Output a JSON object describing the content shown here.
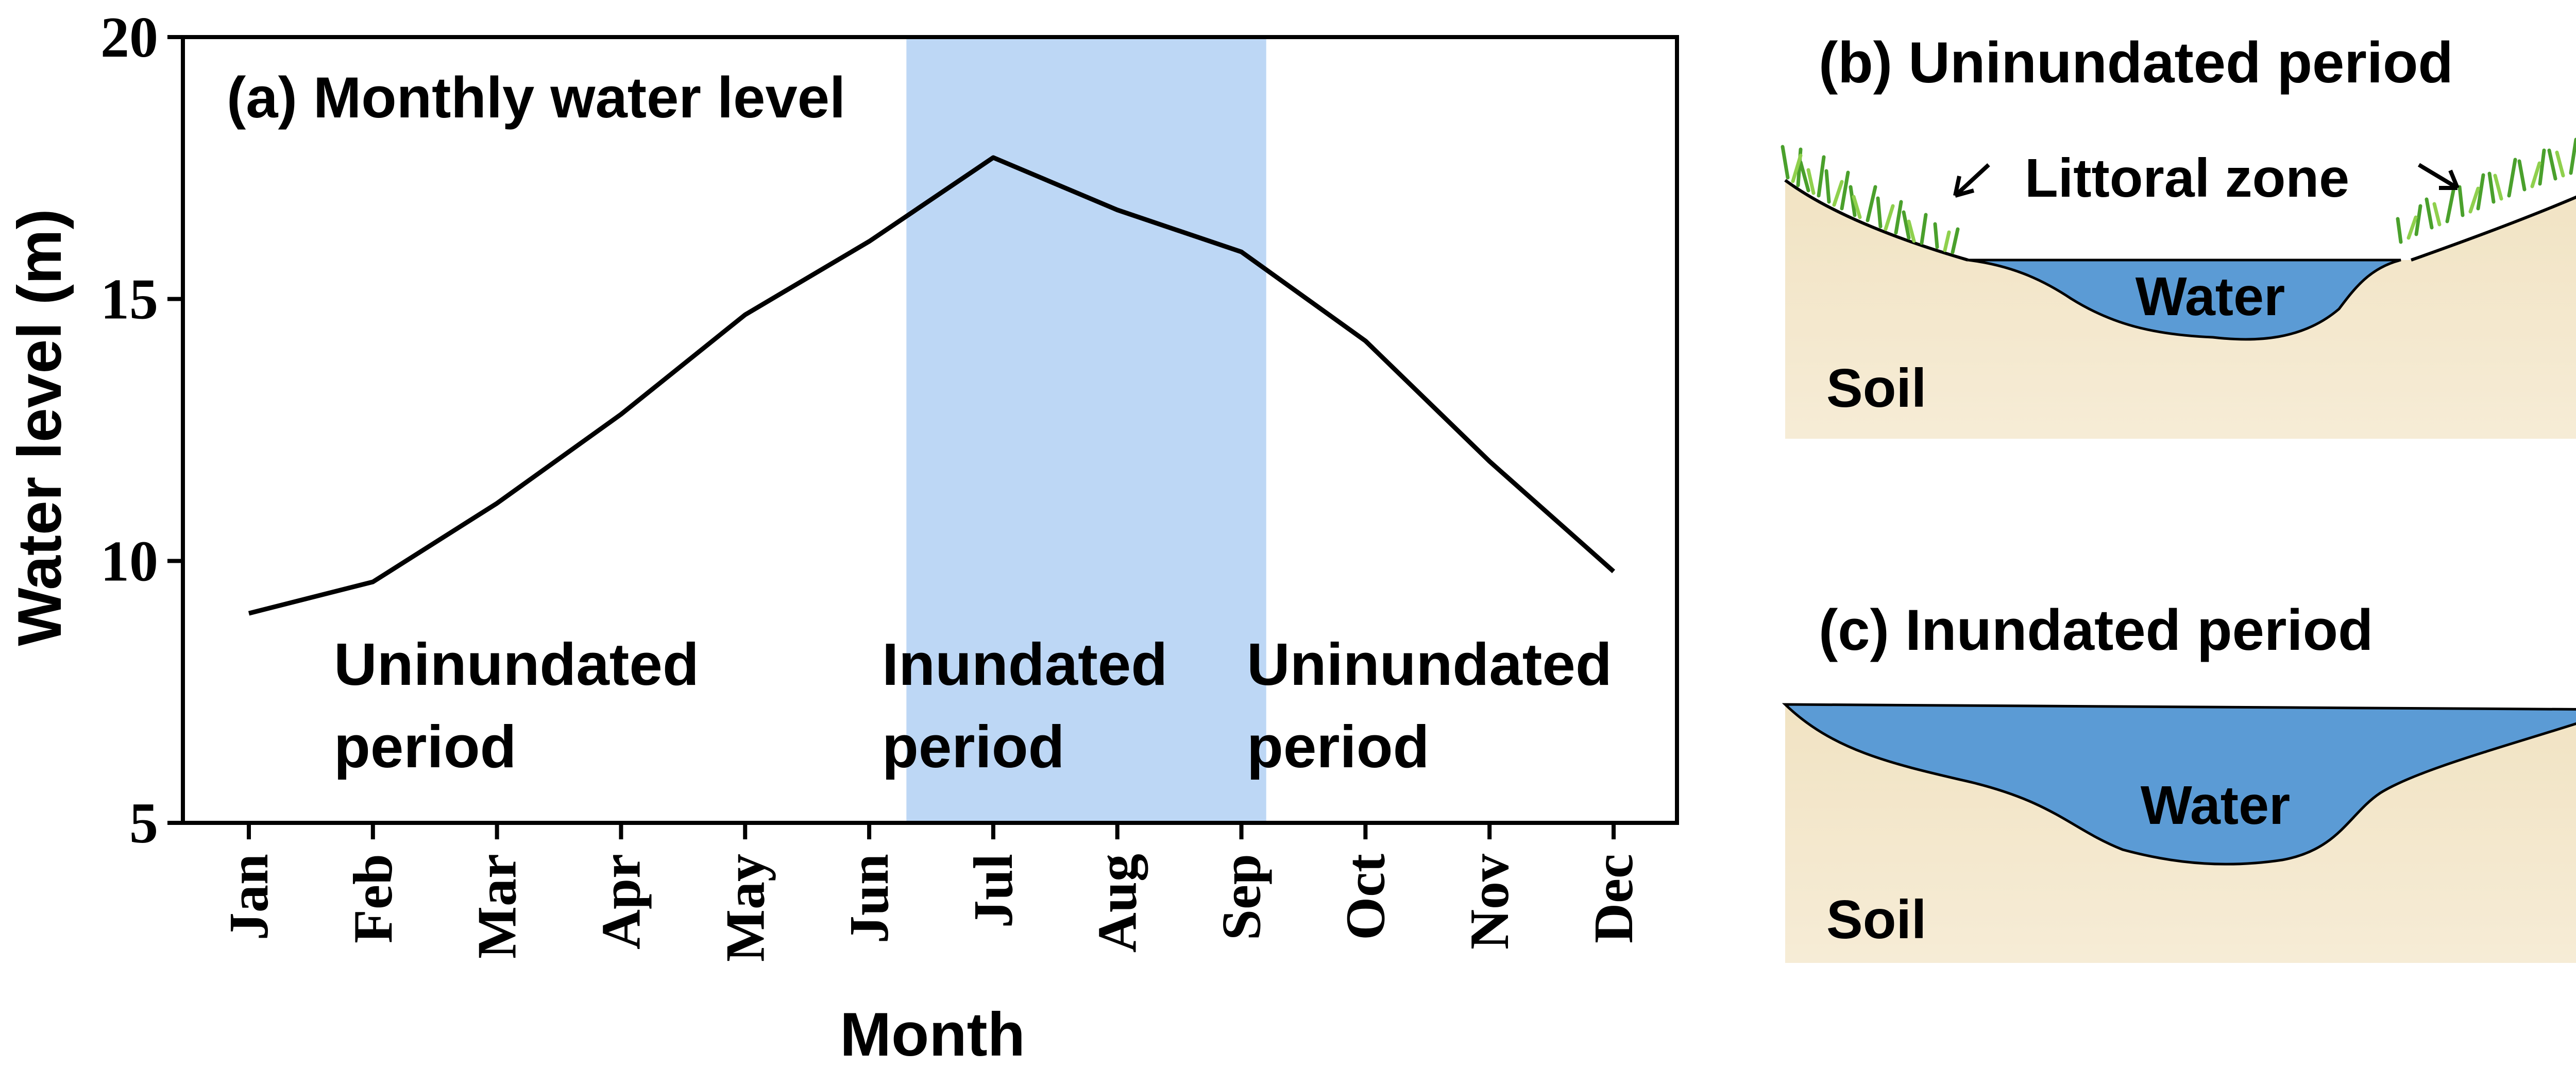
{
  "chart_data": [
    {
      "type": "line",
      "title": "(a) Monthly water level",
      "xlabel": "Month",
      "ylabel": "Water level (m)",
      "ylim": [
        5,
        20
      ],
      "yticks": [
        "5",
        "10",
        "15",
        "20"
      ],
      "categories": [
        "Jan",
        "Feb",
        "Mar",
        "Apr",
        "May",
        "Jun",
        "Jul",
        "Aug",
        "Sep",
        "Oct",
        "Nov",
        "Dec"
      ],
      "series": [
        {
          "name": "Monthly water level",
          "values": [
            9.0,
            9.6,
            11.1,
            12.8,
            14.7,
            16.1,
            17.7,
            16.7,
            15.9,
            14.2,
            11.9,
            9.8
          ]
        }
      ],
      "shaded_region": {
        "from_month": 6.3,
        "to_month": 9.2,
        "color": "#bdd7f5"
      },
      "color": "#000000",
      "annotations": [
        {
          "line1": "Uninundated",
          "line2": "period"
        },
        {
          "line1": "Inundated",
          "line2": "period"
        },
        {
          "line1": "Uninundated",
          "line2": "period"
        }
      ]
    }
  ],
  "diagrams": {
    "b": {
      "title": "(b) Uninundated period",
      "littoral_label": "Littoral zone",
      "water_label": "Water",
      "soil_label": "Soil"
    },
    "c": {
      "title": "(c) Inundated period",
      "water_label": "Water",
      "soil_label": "Soil"
    },
    "colors": {
      "soil": "#f4e8cc",
      "water": "#5b9bd5",
      "grass": "#6fbf3a",
      "grass_dark": "#3f8f22"
    }
  }
}
